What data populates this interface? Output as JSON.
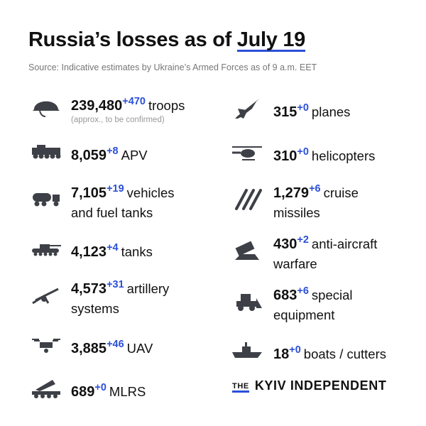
{
  "title": {
    "prefix": "Russia’s losses as of ",
    "date": "July 19"
  },
  "source": "Source: Indicative estimates by Ukraine’s Armed Forces as of 9 a.m. EET",
  "left": [
    {
      "icon": "helmet-icon",
      "value": "239,480",
      "delta": "+470",
      "label": "troops",
      "note": "(approx., to be confirmed)"
    },
    {
      "icon": "apv-icon",
      "value": "8,059",
      "delta": "+8",
      "label": "APV"
    },
    {
      "icon": "fuel-truck-icon",
      "value": "7,105",
      "delta": "+19",
      "label": "vehicles",
      "label2": "and fuel tanks"
    },
    {
      "icon": "tank-icon",
      "value": "4,123",
      "delta": "+4",
      "label": "tanks"
    },
    {
      "icon": "artillery-icon",
      "value": "4,573",
      "delta": "+31",
      "label": "artillery",
      "label2": "systems"
    },
    {
      "icon": "drone-icon",
      "value": "3,885",
      "delta": "+46",
      "label": "UAV"
    },
    {
      "icon": "mlrs-icon",
      "value": "689",
      "delta": "+0",
      "label": "MLRS"
    }
  ],
  "right": [
    {
      "icon": "plane-icon",
      "value": "315",
      "delta": "+0",
      "label": "planes"
    },
    {
      "icon": "helicopter-icon",
      "value": "310",
      "delta": "+0",
      "label": "helicopters"
    },
    {
      "icon": "missile-icon",
      "value": "1,279",
      "delta": "+6",
      "label": "cruise",
      "label2": "missiles"
    },
    {
      "icon": "anti-aircraft-icon",
      "value": "430",
      "delta": "+2",
      "label": "anti-aircraft",
      "label2": "warfare"
    },
    {
      "icon": "loader-icon",
      "value": "683",
      "delta": "+6",
      "label": "special",
      "label2": "equipment"
    },
    {
      "icon": "ship-icon",
      "value": "18",
      "delta": "+0",
      "label": "boats / cutters"
    }
  ],
  "logo": {
    "the": "THE",
    "name": "KYIV INDEPENDENT"
  },
  "colors": {
    "accent": "#2b4fd8",
    "icon": "#3d4046",
    "text": "#111111",
    "muted": "#777777"
  }
}
